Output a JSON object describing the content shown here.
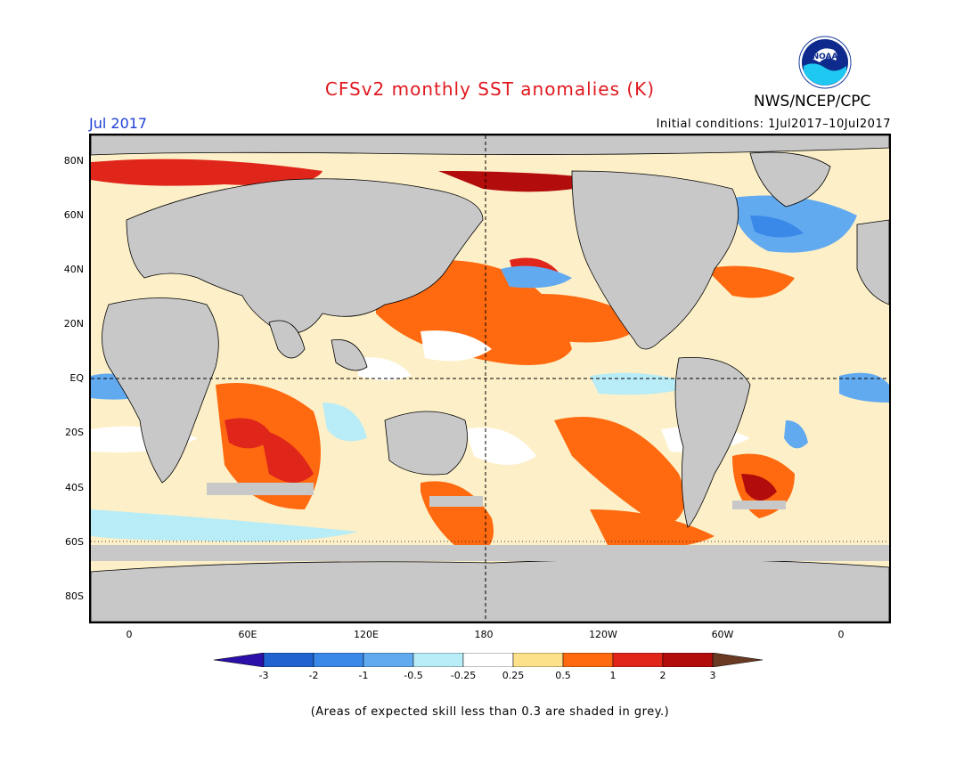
{
  "header": {
    "title": "CFSv2 monthly SST anomalies (K)",
    "agency": "NWS/NCEP/CPC",
    "logo_text": "NOAA",
    "month": "Jul 2017",
    "initial_conditions": "Initial conditions: 1Jul2017–10Jul2017"
  },
  "map": {
    "lat_labels": [
      "80N",
      "60N",
      "40N",
      "20N",
      "EQ",
      "20S",
      "40S",
      "60S",
      "80S"
    ],
    "lon_labels": [
      "0",
      "60E",
      "120E",
      "180",
      "120W",
      "60W",
      "0"
    ],
    "land_color": "#c8c8c8",
    "grid_lines": "dashed equator and 180 meridian"
  },
  "colorbar": {
    "levels": [
      "-3",
      "-2",
      "-1",
      "-0.5",
      "-0.25",
      "0.25",
      "0.5",
      "1",
      "2",
      "3"
    ],
    "colors": [
      "#2b0fa8",
      "#1f62d0",
      "#3a88e8",
      "#62aaf0",
      "#b8ecf6",
      "#ffffff",
      "#fde08a",
      "#ff6a10",
      "#e0251a",
      "#b30c0c",
      "#6a3a22"
    ]
  },
  "footnote": "(Areas of expected skill less than 0.3 are shaded in grey.)"
}
